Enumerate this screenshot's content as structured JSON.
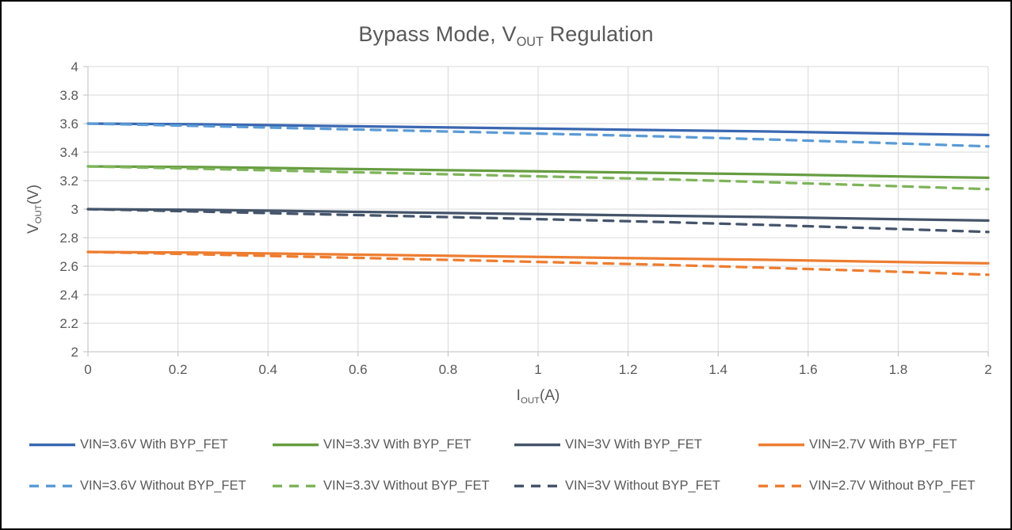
{
  "title": {
    "prefix": "Bypass Mode, V",
    "sub": "OUT",
    "suffix": " Regulation"
  },
  "axes": {
    "y_label": {
      "prefix": "V",
      "sub": "OUT",
      "suffix": "(V)"
    },
    "x_label": {
      "prefix": "I",
      "sub": "OUT",
      "suffix": "(A)"
    },
    "y_ticks": [
      "4",
      "3.8",
      "3.6",
      "3.4",
      "3.2",
      "3",
      "2.8",
      "2.6",
      "2.4",
      "2.2",
      "2"
    ],
    "x_ticks": [
      "0",
      "0.2",
      "0.4",
      "0.6",
      "0.8",
      "1",
      "1.2",
      "1.4",
      "1.6",
      "1.8",
      "2"
    ]
  },
  "colors": {
    "text": "#595959",
    "gridline": "#D9D9D9",
    "axis": "#BFBFBF",
    "frame_border": "#000000",
    "background": "#FFFFFF"
  },
  "chart_data": {
    "type": "line",
    "title": "Bypass Mode, VOUT Regulation",
    "xlabel": "IOUT(A)",
    "ylabel": "VOUT(V)",
    "xlim": [
      0,
      2
    ],
    "ylim": [
      2,
      4
    ],
    "x_tick_step": 0.2,
    "y_tick_step": 0.2,
    "grid": true,
    "legend_position": "bottom",
    "x": [
      0,
      0.25,
      0.5,
      0.75,
      1,
      1.25,
      1.5,
      1.75,
      2
    ],
    "series": [
      {
        "name": "VIN=3.6V With BYP_FET",
        "color": "#3A67B1",
        "dash": "none",
        "values": [
          3.6,
          3.595,
          3.585,
          3.575,
          3.565,
          3.555,
          3.545,
          3.532,
          3.52
        ]
      },
      {
        "name": "VIN=3.3V With BYP_FET",
        "color": "#669D41",
        "dash": "none",
        "values": [
          3.3,
          3.295,
          3.285,
          3.275,
          3.265,
          3.255,
          3.245,
          3.232,
          3.22
        ]
      },
      {
        "name": "VIN=3V With BYP_FET",
        "color": "#44546A",
        "dash": "none",
        "values": [
          3.0,
          2.995,
          2.985,
          2.975,
          2.965,
          2.955,
          2.945,
          2.932,
          2.92
        ]
      },
      {
        "name": "VIN=2.7V With BYP_FET",
        "color": "#ED7D31",
        "dash": "none",
        "values": [
          2.7,
          2.695,
          2.685,
          2.675,
          2.665,
          2.655,
          2.645,
          2.632,
          2.62
        ]
      },
      {
        "name": "VIN=3.6V Without BYP_FET",
        "color": "#5B9BD5",
        "dash": "12,9",
        "values": [
          3.6,
          3.583,
          3.565,
          3.548,
          3.53,
          3.512,
          3.49,
          3.466,
          3.44
        ]
      },
      {
        "name": "VIN=3.3V Without BYP_FET",
        "color": "#7EB45A",
        "dash": "12,9",
        "values": [
          3.3,
          3.283,
          3.265,
          3.248,
          3.23,
          3.212,
          3.19,
          3.166,
          3.14
        ]
      },
      {
        "name": "VIN=3V Without BYP_FET",
        "color": "#44546A",
        "dash": "12,9",
        "values": [
          3.0,
          2.983,
          2.965,
          2.948,
          2.93,
          2.912,
          2.89,
          2.866,
          2.84
        ]
      },
      {
        "name": "VIN=2.7V Without BYP_FET",
        "color": "#ED7D31",
        "dash": "12,9",
        "values": [
          2.7,
          2.683,
          2.665,
          2.648,
          2.63,
          2.612,
          2.59,
          2.566,
          2.54
        ]
      }
    ]
  }
}
